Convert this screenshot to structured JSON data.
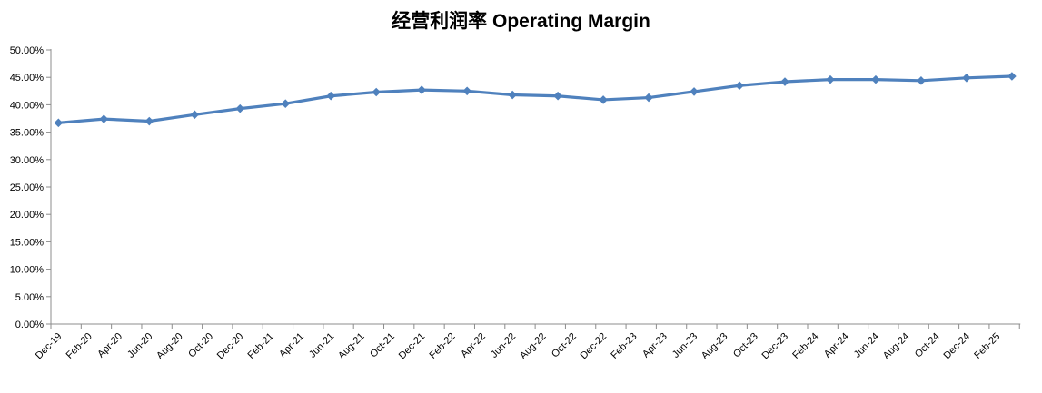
{
  "chart_data": {
    "type": "line",
    "title": "经营利润率 Operating Margin",
    "legend": "none",
    "grid": false,
    "background_color": "#ffffff",
    "line_color": "#4f81bd",
    "marker": "diamond",
    "axis_color": "#8c8c8c",
    "text_color": "#000000",
    "ylabel": "",
    "xlabel": "",
    "ylim": [
      0,
      50
    ],
    "y_tick_step": 5,
    "y_tick_labels": [
      "50.00%",
      "45.00%",
      "40.00%",
      "35.00%",
      "30.00%",
      "25.00%",
      "20.00%",
      "15.00%",
      "10.00%",
      "5.00%",
      "0.00%"
    ],
    "x_tick_labels": [
      "Dec-19",
      "Feb-20",
      "Apr-20",
      "Jun-20",
      "Aug-20",
      "Oct-20",
      "Dec-20",
      "Feb-21",
      "Apr-21",
      "Jun-21",
      "Aug-21",
      "Oct-21",
      "Dec-21",
      "Feb-22",
      "Apr-22",
      "Jun-22",
      "Aug-22",
      "Oct-22",
      "Dec-22",
      "Feb-23",
      "Apr-23",
      "Jun-23",
      "Aug-23",
      "Oct-23",
      "Dec-23",
      "Feb-24",
      "Apr-24",
      "Jun-24",
      "Aug-24",
      "Oct-24",
      "Dec-24",
      "Feb-25"
    ],
    "series": [
      {
        "name": "Operating Margin",
        "points": [
          {
            "period": "Dec-19",
            "value": 36.7
          },
          {
            "period": "Mar-20",
            "value": 37.4
          },
          {
            "period": "Jun-20",
            "value": 37.0
          },
          {
            "period": "Sep-20",
            "value": 38.2
          },
          {
            "period": "Dec-20",
            "value": 39.3
          },
          {
            "period": "Mar-21",
            "value": 40.2
          },
          {
            "period": "Jun-21",
            "value": 41.6
          },
          {
            "period": "Sep-21",
            "value": 42.3
          },
          {
            "period": "Dec-21",
            "value": 42.7
          },
          {
            "period": "Mar-22",
            "value": 42.5
          },
          {
            "period": "Jun-22",
            "value": 41.8
          },
          {
            "period": "Sep-22",
            "value": 41.6
          },
          {
            "period": "Dec-22",
            "value": 40.9
          },
          {
            "period": "Mar-23",
            "value": 41.3
          },
          {
            "period": "Jun-23",
            "value": 42.4
          },
          {
            "period": "Sep-23",
            "value": 43.5
          },
          {
            "period": "Dec-23",
            "value": 44.2
          },
          {
            "period": "Mar-24",
            "value": 44.6
          },
          {
            "period": "Jun-24",
            "value": 44.6
          },
          {
            "period": "Sep-24",
            "value": 44.4
          },
          {
            "period": "Dec-24",
            "value": 44.9
          },
          {
            "period": "Mar-25",
            "value": 45.2
          }
        ]
      }
    ]
  }
}
